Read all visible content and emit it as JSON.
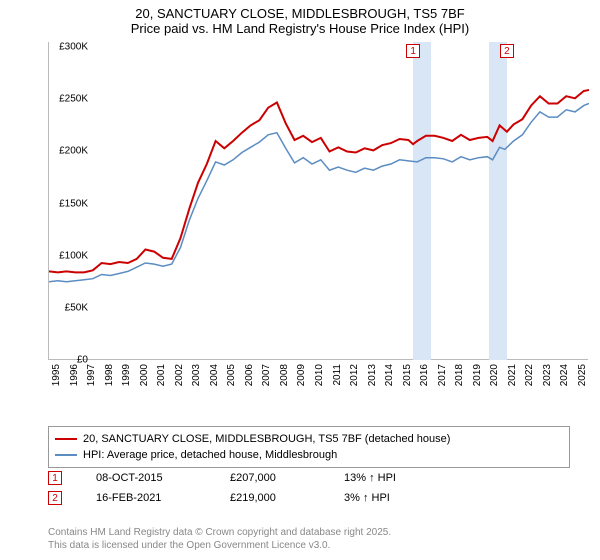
{
  "title": {
    "line1": "20, SANCTUARY CLOSE, MIDDLESBROUGH, TS5 7BF",
    "line2": "Price paid vs. HM Land Registry's House Price Index (HPI)"
  },
  "chart": {
    "type": "line",
    "x_min": 1995,
    "x_max": 2025.8,
    "y_min": 0,
    "y_max": 305000,
    "y_ticks": [
      0,
      50000,
      100000,
      150000,
      200000,
      250000,
      300000
    ],
    "y_tick_labels": [
      "£0",
      "£50K",
      "£100K",
      "£150K",
      "£200K",
      "£250K",
      "£300K"
    ],
    "x_ticks": [
      1995,
      1996,
      1997,
      1998,
      1999,
      2000,
      2001,
      2002,
      2003,
      2004,
      2005,
      2006,
      2007,
      2008,
      2009,
      2010,
      2011,
      2012,
      2013,
      2014,
      2015,
      2016,
      2017,
      2018,
      2019,
      2020,
      2021,
      2022,
      2023,
      2024,
      2025
    ],
    "background_color": "#ffffff",
    "grid_color": "#e0e0e0",
    "shaded_bands": [
      {
        "x_start": 2015.77,
        "x_end": 2016.77,
        "color": "#d9e6f5"
      },
      {
        "x_start": 2020.12,
        "x_end": 2021.12,
        "color": "#d9e6f5"
      }
    ],
    "markers": [
      {
        "label": "1",
        "x": 2015.77,
        "y_top": true
      },
      {
        "label": "2",
        "x": 2021.12,
        "y_top": true
      }
    ],
    "series": [
      {
        "name": "property",
        "label": "20, SANCTUARY CLOSE, MIDDLESBROUGH, TS5 7BF (detached house)",
        "color": "#cc0000",
        "line_width": 2,
        "data": [
          [
            1995,
            85000
          ],
          [
            1995.5,
            84000
          ],
          [
            1996,
            85000
          ],
          [
            1996.5,
            84000
          ],
          [
            1997,
            84000
          ],
          [
            1997.5,
            86000
          ],
          [
            1998,
            93000
          ],
          [
            1998.5,
            92000
          ],
          [
            1999,
            94000
          ],
          [
            1999.5,
            93000
          ],
          [
            2000,
            97000
          ],
          [
            2000.5,
            106000
          ],
          [
            2001,
            104000
          ],
          [
            2001.5,
            98000
          ],
          [
            2002,
            97000
          ],
          [
            2002.5,
            117000
          ],
          [
            2003,
            145000
          ],
          [
            2003.5,
            170000
          ],
          [
            2004,
            188000
          ],
          [
            2004.5,
            210000
          ],
          [
            2005,
            203000
          ],
          [
            2005.5,
            210000
          ],
          [
            2006,
            218000
          ],
          [
            2006.5,
            225000
          ],
          [
            2007,
            230000
          ],
          [
            2007.5,
            242000
          ],
          [
            2008,
            247000
          ],
          [
            2008.5,
            227000
          ],
          [
            2009,
            211000
          ],
          [
            2009.5,
            215000
          ],
          [
            2010,
            209000
          ],
          [
            2010.5,
            213000
          ],
          [
            2011,
            200000
          ],
          [
            2011.5,
            204000
          ],
          [
            2012,
            200000
          ],
          [
            2012.5,
            199000
          ],
          [
            2013,
            203000
          ],
          [
            2013.5,
            201000
          ],
          [
            2014,
            206000
          ],
          [
            2014.5,
            208000
          ],
          [
            2015,
            212000
          ],
          [
            2015.5,
            211000
          ],
          [
            2015.77,
            207000
          ],
          [
            2016,
            210000
          ],
          [
            2016.5,
            215000
          ],
          [
            2017,
            215000
          ],
          [
            2017.5,
            213000
          ],
          [
            2018,
            210000
          ],
          [
            2018.5,
            216000
          ],
          [
            2019,
            211000
          ],
          [
            2019.5,
            213000
          ],
          [
            2020,
            214000
          ],
          [
            2020.3,
            210000
          ],
          [
            2020.7,
            225000
          ],
          [
            2021.12,
            219000
          ],
          [
            2021.5,
            226000
          ],
          [
            2022,
            231000
          ],
          [
            2022.5,
            244000
          ],
          [
            2023,
            253000
          ],
          [
            2023.5,
            246000
          ],
          [
            2024,
            246000
          ],
          [
            2024.5,
            253000
          ],
          [
            2025,
            251000
          ],
          [
            2025.5,
            258000
          ],
          [
            2025.8,
            259000
          ]
        ]
      },
      {
        "name": "hpi",
        "label": "HPI: Average price, detached house, Middlesbrough",
        "color": "#5b8cc2",
        "line_width": 1.5,
        "data": [
          [
            1995,
            75000
          ],
          [
            1995.5,
            76000
          ],
          [
            1996,
            75000
          ],
          [
            1996.5,
            76000
          ],
          [
            1997,
            77000
          ],
          [
            1997.5,
            78000
          ],
          [
            1998,
            82000
          ],
          [
            1998.5,
            81000
          ],
          [
            1999,
            83000
          ],
          [
            1999.5,
            85000
          ],
          [
            2000,
            89000
          ],
          [
            2000.5,
            93000
          ],
          [
            2001,
            92000
          ],
          [
            2001.5,
            90000
          ],
          [
            2002,
            92000
          ],
          [
            2002.5,
            108000
          ],
          [
            2003,
            134000
          ],
          [
            2003.5,
            155000
          ],
          [
            2004,
            172000
          ],
          [
            2004.5,
            190000
          ],
          [
            2005,
            187000
          ],
          [
            2005.5,
            192000
          ],
          [
            2006,
            199000
          ],
          [
            2006.5,
            204000
          ],
          [
            2007,
            209000
          ],
          [
            2007.5,
            216000
          ],
          [
            2008,
            218000
          ],
          [
            2008.5,
            203000
          ],
          [
            2009,
            189000
          ],
          [
            2009.5,
            194000
          ],
          [
            2010,
            188000
          ],
          [
            2010.5,
            192000
          ],
          [
            2011,
            182000
          ],
          [
            2011.5,
            185000
          ],
          [
            2012,
            182000
          ],
          [
            2012.5,
            180000
          ],
          [
            2013,
            184000
          ],
          [
            2013.5,
            182000
          ],
          [
            2014,
            186000
          ],
          [
            2014.5,
            188000
          ],
          [
            2015,
            192000
          ],
          [
            2015.5,
            191000
          ],
          [
            2016,
            190000
          ],
          [
            2016.5,
            194000
          ],
          [
            2017,
            194000
          ],
          [
            2017.5,
            193000
          ],
          [
            2018,
            190000
          ],
          [
            2018.5,
            195000
          ],
          [
            2019,
            192000
          ],
          [
            2019.5,
            194000
          ],
          [
            2020,
            195000
          ],
          [
            2020.3,
            192000
          ],
          [
            2020.7,
            204000
          ],
          [
            2021,
            202000
          ],
          [
            2021.5,
            210000
          ],
          [
            2022,
            216000
          ],
          [
            2022.5,
            228000
          ],
          [
            2023,
            238000
          ],
          [
            2023.5,
            233000
          ],
          [
            2024,
            233000
          ],
          [
            2024.5,
            240000
          ],
          [
            2025,
            238000
          ],
          [
            2025.5,
            244000
          ],
          [
            2025.8,
            246000
          ]
        ]
      }
    ]
  },
  "legend": {
    "border_color": "#999999",
    "rows": [
      {
        "color": "#cc0000",
        "label": "20, SANCTUARY CLOSE, MIDDLESBROUGH, TS5 7BF (detached house)"
      },
      {
        "color": "#5b8cc2",
        "label": "HPI: Average price, detached house, Middlesbrough"
      }
    ]
  },
  "sales": [
    {
      "marker": "1",
      "date": "08-OCT-2015",
      "price": "£207,000",
      "change": "13% ↑ HPI"
    },
    {
      "marker": "2",
      "date": "16-FEB-2021",
      "price": "£219,000",
      "change": "3% ↑ HPI"
    }
  ],
  "footer": {
    "line1": "Contains HM Land Registry data © Crown copyright and database right 2025.",
    "line2": "This data is licensed under the Open Government Licence v3.0."
  }
}
